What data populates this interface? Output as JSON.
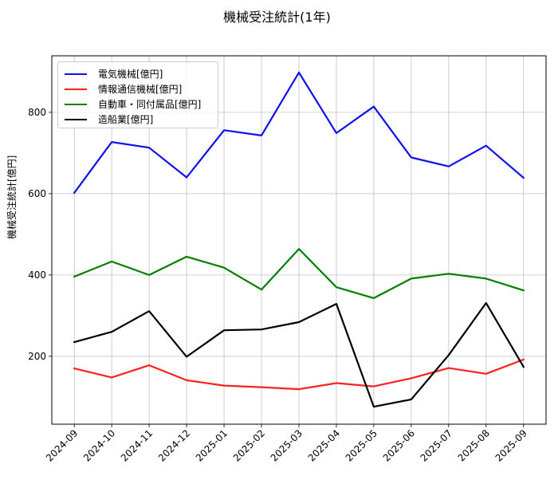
{
  "chart_data": {
    "type": "line",
    "title": "機械受注統計(1年)",
    "xlabel": "",
    "ylabel": "機械受注統計[億円]",
    "categories": [
      "2024-09",
      "2024-10",
      "2024-11",
      "2024-12",
      "2025-01",
      "2025-02",
      "2025-03",
      "2025-04",
      "2025-05",
      "2025-06",
      "2025-07",
      "2025-08",
      "2025-09"
    ],
    "series": [
      {
        "name": "電気機械[億円]",
        "color": "#1010ee",
        "values": [
          602,
          727,
          713,
          640,
          756,
          743,
          898,
          749,
          814,
          689,
          667,
          718,
          639
        ]
      },
      {
        "name": "情報通信機械[億円]",
        "color": "#ff2020",
        "values": [
          170,
          148,
          178,
          141,
          128,
          124,
          119,
          134,
          126,
          146,
          171,
          157,
          192
        ]
      },
      {
        "name": "自動車・同付属品[億円]",
        "color": "#008000",
        "values": [
          396,
          433,
          400,
          445,
          418,
          364,
          464,
          370,
          343,
          391,
          403,
          391,
          362
        ]
      },
      {
        "name": "造船業[億円]",
        "color": "#000000",
        "values": [
          235,
          260,
          311,
          199,
          264,
          266,
          284,
          329,
          76,
          94,
          203,
          331,
          174
        ]
      }
    ],
    "yticks": [
      200,
      400,
      600,
      800
    ],
    "ylim": [
      33,
      939
    ],
    "xlim": [
      -0.6,
      12.6
    ],
    "grid": true,
    "legend_position": "upper left"
  }
}
